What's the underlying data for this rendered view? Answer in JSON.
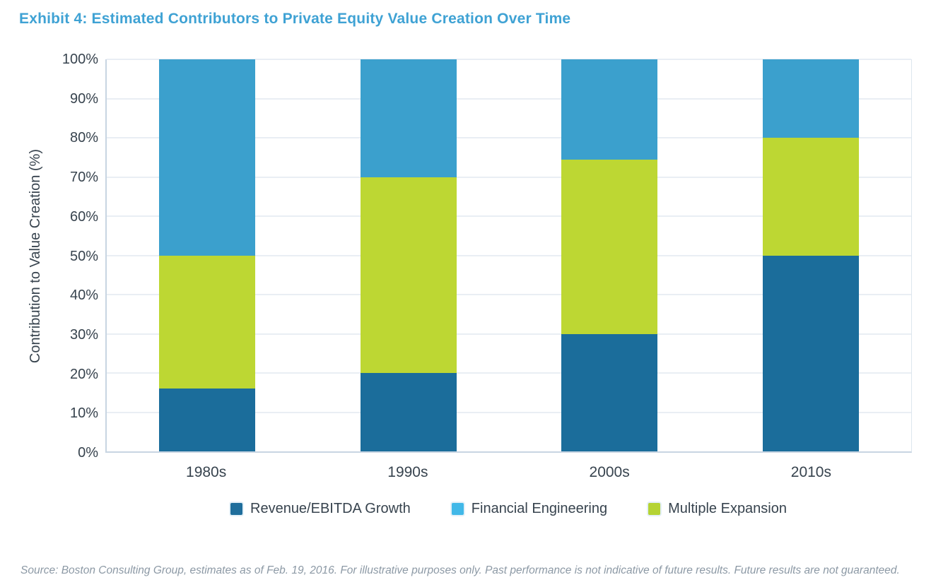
{
  "title": "Exhibit 4: Estimated Contributors to Private Equity Value Creation Over Time",
  "source_note": "Source: Boston Consulting Group, estimates as of Feb. 19, 2016. For illustrative purposes only. Past performance is not indicative of future results. Future results are not guaranteed.",
  "colors": {
    "title_text": "#3FA2D4",
    "axis_text": "#37434E",
    "gridline": "#E9EEF4",
    "axis_border": "#C8D5E2",
    "source_text": "#8C99A5"
  },
  "chart_data": {
    "type": "bar",
    "stacked": true,
    "title": "Exhibit 4: Estimated Contributors to Private Equity Value Creation Over Time",
    "categories": [
      "1980s",
      "1990s",
      "2000s",
      "2010s"
    ],
    "series": [
      {
        "name": "Revenue/EBITDA Growth",
        "color": "#1B6D9B",
        "legend_swatch": "#1F6E9C",
        "values": [
          16,
          20,
          30,
          50
        ]
      },
      {
        "name": "Multiple Expansion",
        "color": "#BDD733",
        "legend_swatch": "#B5D334",
        "values": [
          34,
          50,
          44.5,
          30
        ]
      },
      {
        "name": "Financial Engineering",
        "color": "#3BA0CD",
        "legend_swatch": "#41B8E8",
        "values": [
          50,
          30,
          25.5,
          20
        ]
      }
    ],
    "xlabel": "",
    "ylabel": "Contribution to Value Creation (%)",
    "ylim": [
      0,
      100
    ],
    "ytick_step": 10,
    "ytick_suffix": "%",
    "grid": true,
    "legend_position": "bottom",
    "legend_order": [
      "Revenue/EBITDA Growth",
      "Financial Engineering",
      "Multiple Expansion"
    ]
  }
}
